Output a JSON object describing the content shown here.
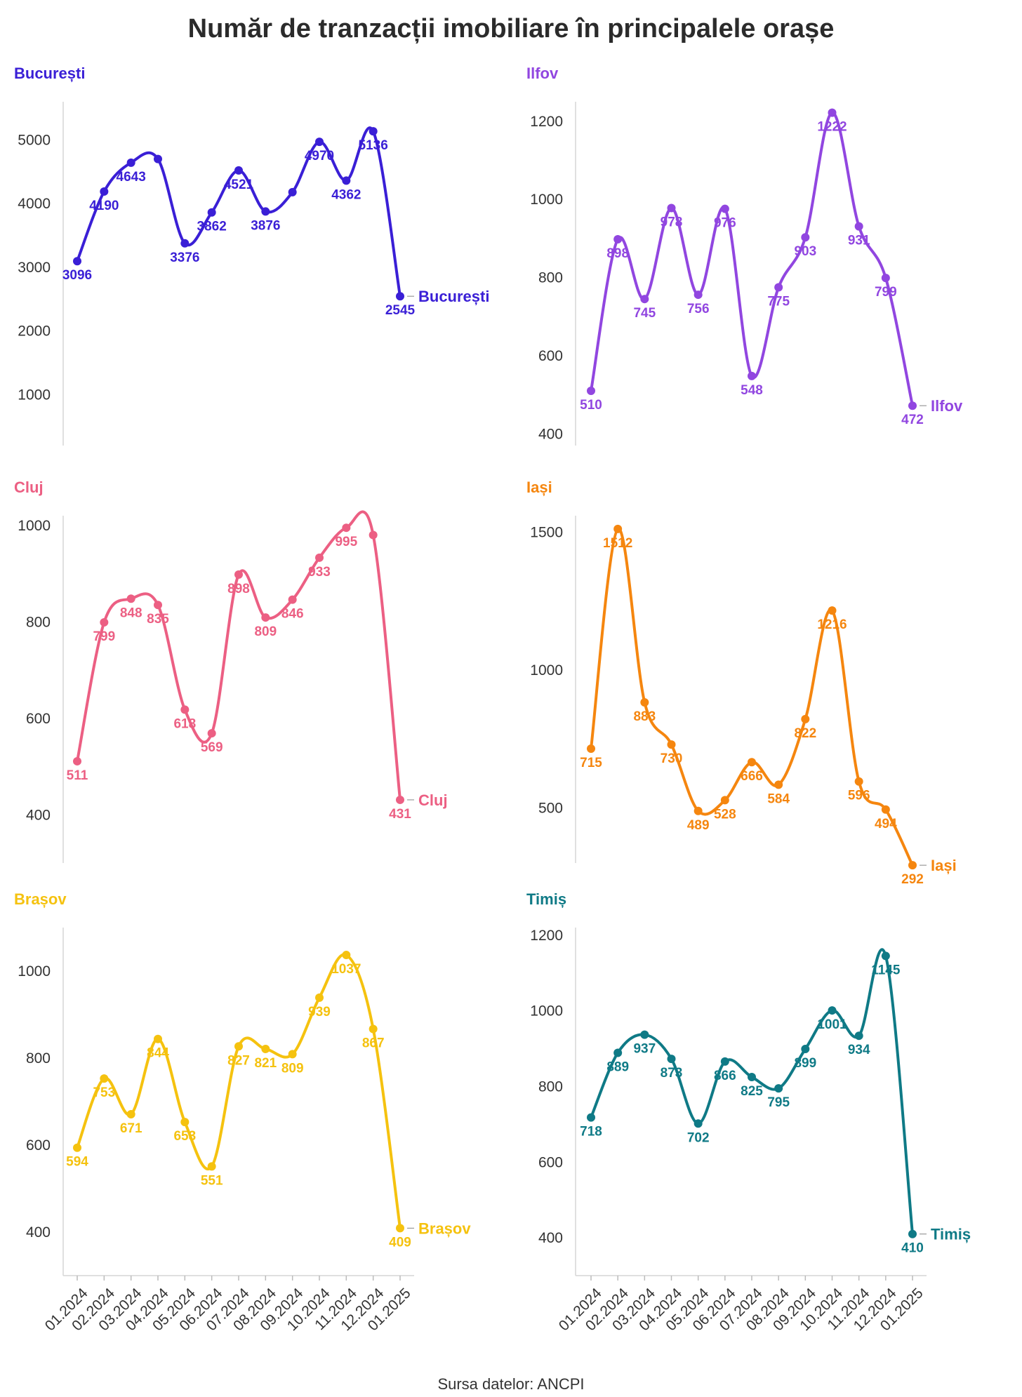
{
  "title": "Număr de tranzacții imobiliare în principalele orașe",
  "source": "Sursa datelor: ANCPI",
  "chart_data": [
    {
      "type": "line",
      "title": "București",
      "color": "#3a1fd6",
      "ylim": [
        200,
        5600
      ],
      "yticks": [
        1000,
        2000,
        3000,
        4000,
        5000
      ],
      "categories": [
        "01.2024",
        "02.2024",
        "03.2024",
        "04.2024",
        "05.2024",
        "06.2024",
        "07.2024",
        "08.2024",
        "09.2024",
        "10.2024",
        "11.2024",
        "12.2024",
        "01.2025"
      ],
      "values": [
        3096,
        4190,
        4643,
        4700,
        3376,
        3862,
        4521,
        3876,
        4180,
        4970,
        4362,
        5136,
        2545
      ],
      "labeled": [
        0,
        1,
        2,
        4,
        5,
        6,
        7,
        9,
        10,
        11,
        12
      ],
      "data_labels": {
        "0": "3096",
        "1": "4190",
        "2": "4643",
        "4": "3376",
        "5": "3862",
        "6": "4521",
        "7": "3876",
        "9": "4970",
        "10": "4362",
        "11": "5136",
        "12": "2545"
      },
      "end_label": "București",
      "show_xaxis": false
    },
    {
      "type": "line",
      "title": "Ilfov",
      "color": "#9146e0",
      "ylim": [
        370,
        1250
      ],
      "yticks": [
        400,
        600,
        800,
        1000,
        1200
      ],
      "categories": [
        "01.2024",
        "02.2024",
        "03.2024",
        "04.2024",
        "05.2024",
        "06.2024",
        "07.2024",
        "08.2024",
        "09.2024",
        "10.2024",
        "11.2024",
        "12.2024",
        "01.2025"
      ],
      "values": [
        510,
        898,
        745,
        978,
        756,
        976,
        548,
        775,
        903,
        1222,
        931,
        799,
        472
      ],
      "data_labels": {
        "0": "510",
        "1": "898",
        "2": "745",
        "3": "978",
        "4": "756",
        "5": "976",
        "6": "548",
        "7": "775",
        "8": "903",
        "9": "1222",
        "10": "931",
        "11": "799",
        "12": "472"
      },
      "end_label": "Ilfov",
      "show_xaxis": false
    },
    {
      "type": "line",
      "title": "Cluj",
      "color": "#ec5f83",
      "ylim": [
        300,
        1020
      ],
      "yticks": [
        400,
        600,
        800,
        1000
      ],
      "categories": [
        "01.2024",
        "02.2024",
        "03.2024",
        "04.2024",
        "05.2024",
        "06.2024",
        "07.2024",
        "08.2024",
        "09.2024",
        "10.2024",
        "11.2024",
        "12.2024",
        "01.2025"
      ],
      "values": [
        511,
        799,
        848,
        835,
        618,
        569,
        898,
        809,
        846,
        933,
        995,
        980,
        431
      ],
      "data_labels": {
        "0": "511",
        "1": "799",
        "2": "848",
        "3": "835",
        "4": "618",
        "5": "569",
        "6": "898",
        "7": "809",
        "8": "846",
        "9": "933",
        "10": "995",
        "12": "431"
      },
      "end_label": "Cluj",
      "show_xaxis": false
    },
    {
      "type": "line",
      "title": "Iași",
      "color": "#f5860f",
      "ylim": [
        300,
        1560
      ],
      "yticks": [
        500,
        1000,
        1500
      ],
      "categories": [
        "01.2024",
        "02.2024",
        "03.2024",
        "04.2024",
        "05.2024",
        "06.2024",
        "07.2024",
        "08.2024",
        "09.2024",
        "10.2024",
        "11.2024",
        "12.2024",
        "01.2025"
      ],
      "values": [
        715,
        1512,
        883,
        730,
        489,
        528,
        666,
        584,
        822,
        1216,
        596,
        494,
        292
      ],
      "data_labels": {
        "0": "715",
        "1": "1512",
        "2": "883",
        "3": "730",
        "4": "489",
        "5": "528",
        "6": "666",
        "7": "584",
        "8": "822",
        "9": "1216",
        "10": "596",
        "11": "494",
        "12": "292"
      },
      "end_label": "Iași",
      "show_xaxis": false
    },
    {
      "type": "line",
      "title": "Brașov",
      "color": "#f5c20f",
      "ylim": [
        300,
        1100
      ],
      "yticks": [
        400,
        600,
        800,
        1000
      ],
      "categories": [
        "01.2024",
        "02.2024",
        "03.2024",
        "04.2024",
        "05.2024",
        "06.2024",
        "07.2024",
        "08.2024",
        "09.2024",
        "10.2024",
        "11.2024",
        "12.2024",
        "01.2025"
      ],
      "values": [
        594,
        753,
        671,
        844,
        653,
        551,
        827,
        821,
        809,
        939,
        1037,
        867,
        409
      ],
      "data_labels": {
        "0": "594",
        "1": "753",
        "2": "671",
        "3": "844",
        "4": "653",
        "5": "551",
        "6": "827",
        "7": "821",
        "8": "809",
        "9": "939",
        "10": "1037",
        "11": "867",
        "12": "409"
      },
      "end_label": "Brașov",
      "show_xaxis": true
    },
    {
      "type": "line",
      "title": "Timiș",
      "color": "#0f7a86",
      "ylim": [
        300,
        1220
      ],
      "yticks": [
        400,
        600,
        800,
        1000,
        1200
      ],
      "categories": [
        "01.2024",
        "02.2024",
        "03.2024",
        "04.2024",
        "05.2024",
        "06.2024",
        "07.2024",
        "08.2024",
        "09.2024",
        "10.2024",
        "11.2024",
        "12.2024",
        "01.2025"
      ],
      "values": [
        718,
        889,
        937,
        873,
        702,
        866,
        825,
        795,
        899,
        1001,
        934,
        1145,
        410
      ],
      "data_labels": {
        "0": "718",
        "1": "889",
        "2": "937",
        "3": "873",
        "4": "702",
        "5": "866",
        "6": "825",
        "7": "795",
        "8": "899",
        "9": "1001",
        "10": "934",
        "11": "1145",
        "12": "410"
      },
      "end_label": "Timiș",
      "show_xaxis": true
    }
  ]
}
